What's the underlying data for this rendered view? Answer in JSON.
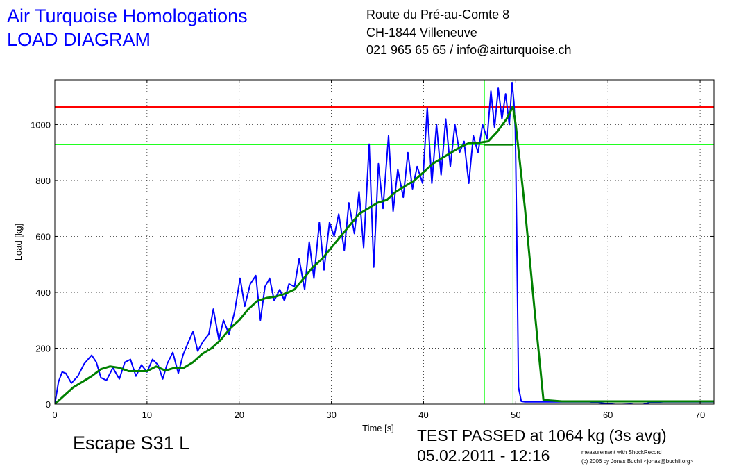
{
  "header": {
    "company": "Air Turquoise Homologations",
    "diagram_title": "LOAD DIAGRAM",
    "address_line1": "Route du Pré-au-Comte 8",
    "address_line2": "CH-1844 Villeneuve",
    "contact": "021 965 65 65 / info@airturquoise.ch"
  },
  "footer": {
    "product": "Escape S31 L",
    "result": "TEST PASSED at 1064 kg (3s avg)",
    "datetime": "05.02.2011 - 12:16",
    "credit_line1": "measurement with ShockRecord",
    "credit_line2": "(c) 2006 by Jonas Buchli <jonas@buchli.org>"
  },
  "colors": {
    "raw": "#0000ff",
    "avg": "#008000",
    "limit": "#ff0000",
    "marker": "#00ff00"
  },
  "chart_data": {
    "type": "line",
    "xlabel": "Time [s]",
    "ylabel": "Load [kg]",
    "xlim": [
      0,
      71.5
    ],
    "ylim": [
      0,
      1160
    ],
    "x_ticks": [
      0,
      10,
      20,
      30,
      40,
      50,
      60,
      70
    ],
    "y_ticks": [
      0,
      200,
      400,
      600,
      800,
      1000
    ],
    "grid": true,
    "reference_lines": {
      "limit_load": 1064,
      "marker_load": 928,
      "marker_time_start": 46.6,
      "marker_time_end": 49.7
    },
    "series": [
      {
        "role": "raw",
        "x": [
          0,
          0.4,
          0.8,
          1.2,
          1.8,
          2.5,
          3.2,
          4,
          4.5,
          5,
          5.6,
          6.3,
          7,
          7.6,
          8.2,
          8.8,
          9.4,
          10,
          10.6,
          11.2,
          11.7,
          12.2,
          12.8,
          13.4,
          13.9,
          14.4,
          15,
          15.5,
          16.1,
          16.7,
          17.2,
          17.8,
          18.3,
          18.9,
          19.5,
          20.1,
          20.6,
          21.2,
          21.8,
          22.3,
          22.8,
          23.3,
          23.8,
          24.4,
          24.9,
          25.4,
          26,
          26.5,
          27.1,
          27.6,
          28.1,
          28.7,
          29.2,
          29.8,
          30.3,
          30.8,
          31.4,
          31.9,
          32.5,
          33,
          33.5,
          34.1,
          34.6,
          35.1,
          35.6,
          36.2,
          36.7,
          37.2,
          37.8,
          38.3,
          38.8,
          39.3,
          39.9,
          40.4,
          40.9,
          41.4,
          41.9,
          42.4,
          42.9,
          43.4,
          43.9,
          44.4,
          44.9,
          45.4,
          45.9,
          46.4,
          46.9,
          47.3,
          47.7,
          48.1,
          48.5,
          48.9,
          49.3,
          49.6,
          49.8,
          49.95,
          50.1,
          50.3,
          50.6,
          51,
          52,
          55,
          58,
          61,
          62.5,
          63.5,
          64.5,
          66,
          68,
          71.5
        ],
        "y": [
          0,
          80,
          115,
          110,
          75,
          100,
          145,
          175,
          150,
          95,
          85,
          130,
          90,
          150,
          160,
          100,
          140,
          115,
          160,
          140,
          90,
          145,
          185,
          110,
          175,
          215,
          260,
          190,
          225,
          250,
          340,
          230,
          300,
          250,
          330,
          450,
          350,
          430,
          460,
          300,
          420,
          450,
          370,
          410,
          370,
          430,
          420,
          520,
          410,
          580,
          450,
          650,
          480,
          650,
          600,
          680,
          550,
          720,
          610,
          760,
          560,
          930,
          490,
          860,
          700,
          960,
          690,
          840,
          740,
          900,
          770,
          850,
          790,
          1060,
          790,
          1000,
          820,
          1020,
          850,
          1000,
          900,
          940,
          790,
          960,
          900,
          1000,
          950,
          1120,
          990,
          1130,
          1020,
          1110,
          1000,
          1150,
          1080,
          980,
          620,
          60,
          10,
          8,
          8,
          8,
          8,
          -2,
          0,
          -4,
          5,
          8,
          8,
          8
        ]
      },
      {
        "role": "avg",
        "x": [
          0,
          1,
          2,
          3,
          4,
          5,
          6,
          7,
          8,
          9,
          10,
          11,
          12,
          13,
          14,
          15,
          16,
          17,
          18,
          19,
          20,
          21,
          22,
          23,
          24,
          25,
          26,
          27,
          28,
          29,
          30,
          31,
          32,
          33,
          34,
          35,
          36,
          37,
          38,
          39,
          40,
          41,
          42,
          43,
          44,
          45,
          46,
          47,
          48,
          49,
          49.7,
          50,
          51,
          52,
          53,
          55,
          60,
          65,
          71.5
        ],
        "y": [
          0,
          30,
          60,
          80,
          100,
          125,
          135,
          130,
          118,
          118,
          118,
          135,
          120,
          130,
          130,
          150,
          180,
          200,
          230,
          270,
          300,
          340,
          370,
          380,
          385,
          395,
          410,
          450,
          490,
          520,
          560,
          600,
          640,
          680,
          700,
          720,
          730,
          760,
          780,
          800,
          830,
          860,
          880,
          900,
          920,
          935,
          935,
          940,
          975,
          1020,
          1064,
          1000,
          700,
          350,
          15,
          10,
          10,
          10,
          10
        ]
      }
    ]
  }
}
